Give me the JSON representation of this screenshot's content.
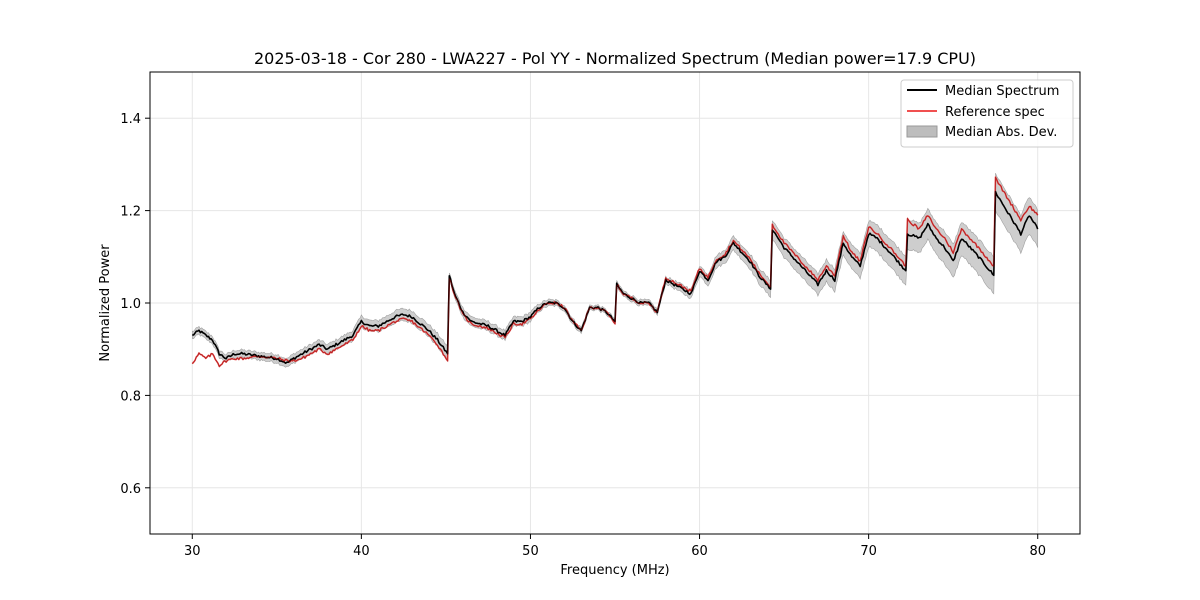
{
  "chart_data": {
    "type": "line",
    "title": "2025-03-18 - Cor 280 - LWA227 - Pol YY - Normalized Spectrum (Median power=17.9 CPU)",
    "xlabel": "Frequency (MHz)",
    "ylabel": "Normalized Power",
    "xlim": [
      27.5,
      82.5
    ],
    "ylim": [
      0.5,
      1.5
    ],
    "xticks": [
      30,
      40,
      50,
      60,
      70,
      80
    ],
    "yticks": [
      0.6,
      0.8,
      1.0,
      1.2,
      1.4
    ],
    "xtick_labels": [
      "30",
      "40",
      "50",
      "60",
      "70",
      "80"
    ],
    "ytick_labels": [
      "0.6",
      "0.8",
      "1.0",
      "1.2",
      "1.4"
    ],
    "grid": true,
    "legend_position": "top-right",
    "colors": {
      "median": "#000000",
      "reference": "#f05050",
      "mad": "#bdbdbd"
    },
    "series": [
      {
        "name": "Median Spectrum",
        "x": [
          30.0,
          30.4,
          30.8,
          31.2,
          31.6,
          32.0,
          32.5,
          33.0,
          34.0,
          35.0,
          35.6,
          36.0,
          36.5,
          37.0,
          37.5,
          38.0,
          38.5,
          39.0,
          39.5,
          40.0,
          40.5,
          41.0,
          41.5,
          42.0,
          42.5,
          43.0,
          43.5,
          44.0,
          44.5,
          45.1,
          45.2,
          45.5,
          46.0,
          46.5,
          47.0,
          47.5,
          48.0,
          48.5,
          49.0,
          49.5,
          50.0,
          50.5,
          51.0,
          51.5,
          52.0,
          52.5,
          53.0,
          53.5,
          54.0,
          54.5,
          55.0,
          55.1,
          55.5,
          56.0,
          56.5,
          57.0,
          57.5,
          58.0,
          58.5,
          59.0,
          59.5,
          60.0,
          60.5,
          61.0,
          61.5,
          62.0,
          62.5,
          63.0,
          63.5,
          64.2,
          64.3,
          65.0,
          66.0,
          67.0,
          67.5,
          68.0,
          68.5,
          69.0,
          69.5,
          70.0,
          70.5,
          71.0,
          71.5,
          72.2,
          72.3,
          73.0,
          73.5,
          74.0,
          74.5,
          75.0,
          75.5,
          76.0,
          76.5,
          77.4,
          77.5,
          78.0,
          78.5,
          79.0,
          79.5,
          80.0
        ],
        "values": [
          0.93,
          0.94,
          0.93,
          0.92,
          0.89,
          0.88,
          0.89,
          0.89,
          0.885,
          0.88,
          0.87,
          0.88,
          0.89,
          0.9,
          0.91,
          0.9,
          0.91,
          0.92,
          0.93,
          0.96,
          0.95,
          0.95,
          0.96,
          0.97,
          0.975,
          0.97,
          0.955,
          0.94,
          0.92,
          0.89,
          1.06,
          1.02,
          0.98,
          0.96,
          0.955,
          0.95,
          0.94,
          0.93,
          0.96,
          0.96,
          0.97,
          0.99,
          1.0,
          1.0,
          0.99,
          0.96,
          0.94,
          0.99,
          0.99,
          0.98,
          0.96,
          1.04,
          1.02,
          1.01,
          1.0,
          1.0,
          0.98,
          1.05,
          1.04,
          1.03,
          1.02,
          1.07,
          1.05,
          1.09,
          1.1,
          1.13,
          1.11,
          1.09,
          1.06,
          1.03,
          1.16,
          1.12,
          1.08,
          1.04,
          1.07,
          1.05,
          1.13,
          1.1,
          1.08,
          1.15,
          1.14,
          1.12,
          1.1,
          1.07,
          1.15,
          1.14,
          1.17,
          1.14,
          1.12,
          1.09,
          1.14,
          1.12,
          1.1,
          1.06,
          1.24,
          1.21,
          1.18,
          1.15,
          1.19,
          1.16
        ],
        "band_halfwidth": [
          0.008,
          0.008,
          0.008,
          0.008,
          0.008,
          0.008,
          0.008,
          0.008,
          0.008,
          0.009,
          0.009,
          0.01,
          0.01,
          0.01,
          0.01,
          0.01,
          0.01,
          0.01,
          0.011,
          0.012,
          0.012,
          0.012,
          0.012,
          0.013,
          0.013,
          0.013,
          0.013,
          0.013,
          0.014,
          0.015,
          0.006,
          0.008,
          0.01,
          0.01,
          0.01,
          0.01,
          0.01,
          0.01,
          0.01,
          0.01,
          0.01,
          0.008,
          0.007,
          0.006,
          0.006,
          0.006,
          0.006,
          0.005,
          0.005,
          0.005,
          0.005,
          0.006,
          0.006,
          0.006,
          0.006,
          0.006,
          0.006,
          0.007,
          0.008,
          0.009,
          0.01,
          0.011,
          0.012,
          0.013,
          0.014,
          0.015,
          0.015,
          0.016,
          0.017,
          0.018,
          0.02,
          0.021,
          0.022,
          0.023,
          0.024,
          0.024,
          0.025,
          0.026,
          0.027,
          0.028,
          0.029,
          0.029,
          0.03,
          0.031,
          0.032,
          0.032,
          0.033,
          0.034,
          0.035,
          0.036,
          0.036,
          0.037,
          0.038,
          0.04,
          0.04,
          0.04,
          0.04,
          0.04,
          0.04,
          0.04
        ]
      },
      {
        "name": "Reference spec",
        "x": [
          30.0,
          30.4,
          30.8,
          31.2,
          31.6,
          32.0,
          32.5,
          33.0,
          34.0,
          35.0,
          35.6,
          36.0,
          36.5,
          37.0,
          37.5,
          38.0,
          38.5,
          39.0,
          39.5,
          40.0,
          40.5,
          41.0,
          41.5,
          42.0,
          42.5,
          43.0,
          43.5,
          44.0,
          44.5,
          45.1,
          45.2,
          45.5,
          46.0,
          46.5,
          47.0,
          47.5,
          48.0,
          48.5,
          49.0,
          49.5,
          50.0,
          50.5,
          51.0,
          51.5,
          52.0,
          52.5,
          53.0,
          53.5,
          54.0,
          54.5,
          55.0,
          55.1,
          55.5,
          56.0,
          56.5,
          57.0,
          57.5,
          58.0,
          58.5,
          59.0,
          59.5,
          60.0,
          60.5,
          61.0,
          61.5,
          62.0,
          62.5,
          63.0,
          63.5,
          64.2,
          64.3,
          65.0,
          66.0,
          67.0,
          67.5,
          68.0,
          68.5,
          69.0,
          69.5,
          70.0,
          70.5,
          71.0,
          71.5,
          72.2,
          72.3,
          73.0,
          73.5,
          74.0,
          74.5,
          75.0,
          75.5,
          76.0,
          76.5,
          77.4,
          77.5,
          78.0,
          78.5,
          79.0,
          79.5,
          80.0
        ],
        "values": [
          0.87,
          0.89,
          0.88,
          0.89,
          0.865,
          0.875,
          0.88,
          0.88,
          0.885,
          0.88,
          0.875,
          0.875,
          0.88,
          0.89,
          0.9,
          0.89,
          0.9,
          0.91,
          0.92,
          0.95,
          0.94,
          0.94,
          0.95,
          0.96,
          0.965,
          0.96,
          0.945,
          0.93,
          0.91,
          0.875,
          1.055,
          1.02,
          0.975,
          0.955,
          0.95,
          0.945,
          0.935,
          0.925,
          0.955,
          0.955,
          0.965,
          0.985,
          1.0,
          1.0,
          0.99,
          0.96,
          0.94,
          0.99,
          0.99,
          0.98,
          0.955,
          1.04,
          1.02,
          1.01,
          1.0,
          1.0,
          0.98,
          1.055,
          1.045,
          1.035,
          1.025,
          1.075,
          1.055,
          1.095,
          1.105,
          1.135,
          1.115,
          1.095,
          1.065,
          1.035,
          1.17,
          1.13,
          1.09,
          1.05,
          1.08,
          1.06,
          1.145,
          1.11,
          1.09,
          1.165,
          1.15,
          1.13,
          1.11,
          1.08,
          1.18,
          1.16,
          1.19,
          1.16,
          1.14,
          1.11,
          1.16,
          1.14,
          1.12,
          1.08,
          1.27,
          1.24,
          1.21,
          1.18,
          1.21,
          1.19
        ]
      }
    ],
    "legend": [
      "Median Spectrum",
      "Reference spec",
      "Median Abs. Dev."
    ]
  }
}
